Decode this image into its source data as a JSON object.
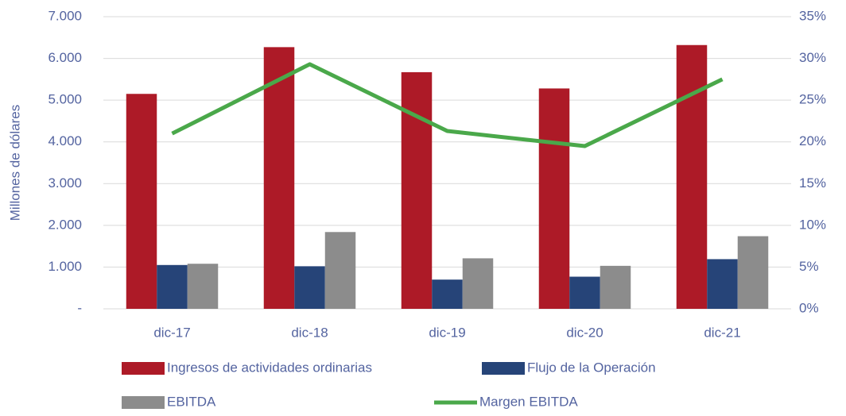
{
  "chart_data": {
    "type": "bar",
    "ylabel": "Millones de dólares",
    "categories": [
      "dic-17",
      "dic-18",
      "dic-19",
      "dic-20",
      "dic-21"
    ],
    "series": [
      {
        "name": "Ingresos de actividades ordinarias",
        "color": "#ad1a27",
        "type": "bar",
        "values": [
          5150,
          6270,
          5670,
          5280,
          6320
        ]
      },
      {
        "name": "Flujo de la Operación",
        "color": "#264478",
        "type": "bar",
        "values": [
          1050,
          1020,
          700,
          770,
          1190
        ]
      },
      {
        "name": "EBITDA",
        "color": "#8c8c8c",
        "type": "bar",
        "values": [
          1080,
          1840,
          1210,
          1030,
          1740
        ]
      },
      {
        "name": "Margen EBITDA",
        "color": "#4aa84a",
        "type": "line",
        "axis": "y2",
        "values": [
          21.0,
          29.3,
          21.3,
          19.5,
          27.5
        ]
      }
    ],
    "ylim": [
      0,
      7000
    ],
    "yticks": [
      {
        "value": 0,
        "label": "-"
      },
      {
        "value": 1000,
        "label": "1.000"
      },
      {
        "value": 2000,
        "label": "2.000"
      },
      {
        "value": 3000,
        "label": "3.000"
      },
      {
        "value": 4000,
        "label": "4.000"
      },
      {
        "value": 5000,
        "label": "5.000"
      },
      {
        "value": 6000,
        "label": "6.000"
      },
      {
        "value": 7000,
        "label": "7.000"
      }
    ],
    "y2lim": [
      0,
      35
    ],
    "y2ticks": [
      {
        "value": 0,
        "label": "0%"
      },
      {
        "value": 5,
        "label": "5%"
      },
      {
        "value": 10,
        "label": "10%"
      },
      {
        "value": 15,
        "label": "15%"
      },
      {
        "value": 20,
        "label": "20%"
      },
      {
        "value": 25,
        "label": "25%"
      },
      {
        "value": 30,
        "label": "30%"
      },
      {
        "value": 35,
        "label": "35%"
      }
    ],
    "grid": true,
    "legend": "bottom"
  }
}
